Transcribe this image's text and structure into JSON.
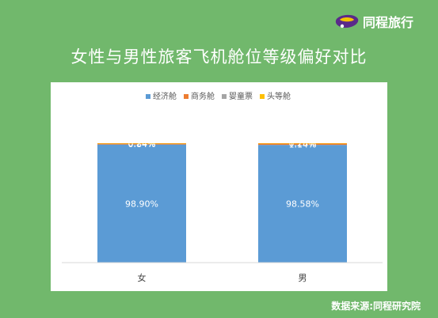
{
  "brand": {
    "name": "同程旅行"
  },
  "title": "女性与男性旅客飞机舱位等级偏好对比",
  "source": "数据来源:同程研究院",
  "chart_data": {
    "type": "bar",
    "stacked": true,
    "percent_stacked": true,
    "categories": [
      "女",
      "男"
    ],
    "series": [
      {
        "name": "经济舱",
        "color": "#5b9bd5",
        "values": [
          98.9,
          98.58
        ],
        "labels": [
          "98.90%",
          "98.58%"
        ]
      },
      {
        "name": "商务舱",
        "color": "#ed7d31",
        "values": [
          0.84,
          1.14
        ],
        "labels": [
          "0.84%",
          "1.14%"
        ]
      },
      {
        "name": "婴童票",
        "color": "#a5a5a5",
        "values": [
          0.24,
          0.26
        ],
        "labels": [
          "0.24%",
          "0.26%"
        ]
      },
      {
        "name": "头等舱",
        "color": "#ffc000",
        "values": [
          0.02,
          0.02
        ],
        "labels": [
          "",
          ""
        ]
      }
    ],
    "legend_position": "top",
    "grid": false
  }
}
